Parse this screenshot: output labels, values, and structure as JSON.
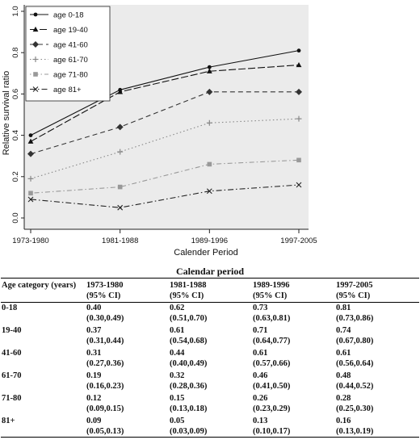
{
  "chart_data": {
    "type": "line",
    "xlabel": "Calender Period",
    "ylabel": "Relative survival ratio",
    "categories": [
      "1973-1980",
      "1981-1988",
      "1989-1996",
      "1997-2005"
    ],
    "yticks": [
      "0.0",
      "0.2",
      "0.4",
      "0.6",
      "0.8",
      "1.0"
    ],
    "ylim": [
      0,
      1.0
    ],
    "legend_position": "top-left",
    "series": [
      {
        "name": "age 0-18",
        "values": [
          0.4,
          0.62,
          0.73,
          0.81
        ],
        "marker": "dot",
        "dash": "solid"
      },
      {
        "name": "age 19-40",
        "values": [
          0.37,
          0.61,
          0.71,
          0.74
        ],
        "marker": "triangle",
        "dash": "long-dash"
      },
      {
        "name": "age 41-60",
        "values": [
          0.31,
          0.44,
          0.61,
          0.61
        ],
        "marker": "diamond",
        "dash": "dash"
      },
      {
        "name": "age 61-70",
        "values": [
          0.19,
          0.32,
          0.46,
          0.48
        ],
        "marker": "plus",
        "dash": "dot"
      },
      {
        "name": "age 71-80",
        "values": [
          0.12,
          0.15,
          0.26,
          0.28
        ],
        "marker": "square",
        "dash": "dot-dash"
      },
      {
        "name": "age 81+",
        "values": [
          0.09,
          0.05,
          0.13,
          0.16
        ],
        "marker": "cross",
        "dash": "dash-dot"
      }
    ]
  },
  "table": {
    "title": "Calendar period",
    "row_header": "Age category (years)",
    "columns": [
      {
        "period": "1973-1980",
        "ci": "(95% CI)"
      },
      {
        "period": "1981-1988",
        "ci": "(95% CI)"
      },
      {
        "period": "1989-1996",
        "ci": "(95% CI)"
      },
      {
        "period": "1997-2005",
        "ci": "(95% CI)"
      }
    ],
    "rows": [
      {
        "age": "0-18",
        "values": [
          "0.40",
          "0.62",
          "0.73",
          "0.81"
        ],
        "cis": [
          "(0.30,0.49)",
          "(0.51,0.70)",
          "(0.63,0.81)",
          "(0.73,0.86)"
        ]
      },
      {
        "age": "19-40",
        "values": [
          "0.37",
          "0.61",
          "0.71",
          "0.74"
        ],
        "cis": [
          "(0.31,0.44)",
          "(0.54,0.68)",
          "(0.64,0.77)",
          "(0.67,0.80)"
        ]
      },
      {
        "age": "41-60",
        "values": [
          "0.31",
          "0.44",
          "0.61",
          "0.61"
        ],
        "cis": [
          "(0.27,0.36)",
          "(0.40,0.49)",
          "(0.57,0.66)",
          "(0.56,0.64)"
        ]
      },
      {
        "age": "61-70",
        "values": [
          "0.19",
          "0.32",
          "0.46",
          "0.48"
        ],
        "cis": [
          "(0.16,0.23)",
          "(0.28,0.36)",
          "(0.41,0.50)",
          "(0.44,0.52)"
        ]
      },
      {
        "age": "71-80",
        "values": [
          "0.12",
          "0.15",
          "0.26",
          "0.28"
        ],
        "cis": [
          "(0.09,0.15)",
          "(0.13,0.18)",
          "(0.23,0.29)",
          "(0.25,0.30)"
        ]
      },
      {
        "age": "81+",
        "values": [
          "0.09",
          "0.05",
          "0.13",
          "0.16"
        ],
        "cis": [
          "(0.05,0.13)",
          "(0.03,0.09)",
          "(0.10,0.17)",
          "(0.13,0.19)"
        ]
      }
    ]
  }
}
